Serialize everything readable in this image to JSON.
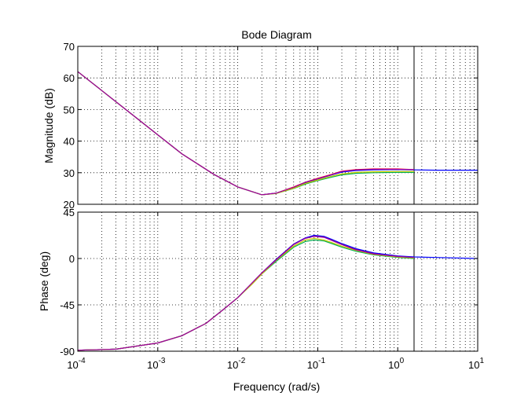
{
  "figure": {
    "title": "Bode Diagram",
    "xlabel": "Frequency  (rad/s)",
    "magnitude_ylabel": "Magnitude (dB)",
    "phase_ylabel": "Phase (deg)"
  },
  "chart_data": [
    {
      "type": "line",
      "panel": "magnitude",
      "title": "Bode Diagram",
      "ylabel": "Magnitude (dB)",
      "xscale": "log",
      "xlim": [
        0.0001,
        10
      ],
      "ylim": [
        20,
        70
      ],
      "yticks": [
        20,
        30,
        40,
        50,
        60,
        70
      ],
      "grid": true,
      "marker_line_x": 1.6,
      "series": [
        {
          "color": "#ff0000",
          "x": [
            0.0001,
            0.0002,
            0.0005,
            0.001,
            0.002,
            0.005,
            0.01,
            0.02,
            0.03,
            0.05,
            0.07,
            0.1,
            0.15,
            0.2,
            0.3,
            0.5,
            1,
            1.6
          ],
          "y": [
            62,
            56,
            48,
            42,
            36,
            29.5,
            25.5,
            23,
            23.5,
            25.5,
            27,
            28.2,
            29.5,
            30.5,
            31,
            31.2,
            31.2,
            31
          ]
        },
        {
          "color": "#0000ff",
          "x": [
            0.0001,
            0.0002,
            0.0005,
            0.001,
            0.002,
            0.005,
            0.01,
            0.02,
            0.03,
            0.05,
            0.07,
            0.1,
            0.15,
            0.2,
            0.3,
            0.5,
            1,
            1.6,
            3,
            10
          ],
          "y": [
            62,
            56,
            48,
            42,
            36,
            29.5,
            25.5,
            23,
            23.5,
            25.3,
            26.8,
            28,
            29.3,
            30.2,
            30.7,
            30.9,
            31,
            30.9,
            30.8,
            30.8
          ]
        },
        {
          "color": "#00b050",
          "x": [
            0.0001,
            0.0002,
            0.0005,
            0.001,
            0.002,
            0.005,
            0.01,
            0.02,
            0.03,
            0.05,
            0.07,
            0.1,
            0.15,
            0.2,
            0.3,
            0.5,
            1,
            1.6
          ],
          "y": [
            62,
            56,
            48,
            42,
            36,
            29.5,
            25.5,
            23,
            23.4,
            25,
            26.4,
            27.5,
            28.6,
            29.3,
            29.8,
            30,
            30.1,
            30.1
          ]
        },
        {
          "color": "#c8c800",
          "x": [
            0.0001,
            0.0002,
            0.0005,
            0.001,
            0.002,
            0.005,
            0.01,
            0.02,
            0.03,
            0.05,
            0.07,
            0.1,
            0.15,
            0.2,
            0.3,
            0.5,
            1,
            1.6
          ],
          "y": [
            62,
            56,
            48,
            42,
            36,
            29.5,
            25.5,
            23,
            23.4,
            25.1,
            26.6,
            27.7,
            28.9,
            29.6,
            30.1,
            30.3,
            30.4,
            30.4
          ]
        },
        {
          "color": "#a000a0",
          "x": [
            0.0001,
            0.0002,
            0.0005,
            0.001,
            0.002,
            0.005,
            0.01,
            0.02,
            0.03,
            0.05,
            0.07,
            0.1,
            0.15,
            0.2,
            0.3,
            0.5,
            1,
            1.6
          ],
          "y": [
            62,
            56,
            48,
            42,
            36,
            29.5,
            25.5,
            23,
            23.5,
            25.4,
            27,
            28.1,
            29.4,
            30.4,
            30.9,
            31.1,
            31.1,
            31
          ]
        }
      ]
    },
    {
      "type": "line",
      "panel": "phase",
      "ylabel": "Phase (deg)",
      "xlabel": "Frequency  (rad/s)",
      "xscale": "log",
      "xlim": [
        0.0001,
        10
      ],
      "ylim": [
        -90,
        45
      ],
      "yticks": [
        -90,
        -45,
        0,
        45
      ],
      "xticks": [
        {
          "base": "10",
          "exp": "-4"
        },
        {
          "base": "10",
          "exp": "-3"
        },
        {
          "base": "10",
          "exp": "-2"
        },
        {
          "base": "10",
          "exp": "-1"
        },
        {
          "base": "10",
          "exp": "0"
        },
        {
          "base": "10",
          "exp": "1"
        }
      ],
      "grid": true,
      "marker_line_x": 1.6,
      "series": [
        {
          "color": "#ff0000",
          "x": [
            0.0001,
            0.0003,
            0.001,
            0.002,
            0.004,
            0.007,
            0.01,
            0.015,
            0.02,
            0.03,
            0.05,
            0.07,
            0.09,
            0.12,
            0.15,
            0.2,
            0.3,
            0.5,
            1,
            1.6
          ],
          "y": [
            -89,
            -88,
            -82,
            -75,
            -63,
            -48,
            -38,
            -24,
            -14,
            -1,
            14,
            20,
            22,
            21,
            18,
            14,
            9,
            5,
            2,
            1
          ]
        },
        {
          "color": "#0000ff",
          "x": [
            0.0001,
            0.0003,
            0.001,
            0.002,
            0.004,
            0.007,
            0.01,
            0.015,
            0.02,
            0.03,
            0.05,
            0.07,
            0.09,
            0.12,
            0.15,
            0.2,
            0.3,
            0.5,
            1,
            1.6,
            3,
            10
          ],
          "y": [
            -89,
            -88,
            -82,
            -75,
            -63,
            -48,
            -38,
            -24,
            -14,
            -1,
            14,
            20,
            22.5,
            21.5,
            18.5,
            14.5,
            9.5,
            5.5,
            2.5,
            1.5,
            1,
            0
          ]
        },
        {
          "color": "#00b050",
          "x": [
            0.0001,
            0.0003,
            0.001,
            0.002,
            0.004,
            0.007,
            0.01,
            0.015,
            0.02,
            0.03,
            0.05,
            0.07,
            0.09,
            0.12,
            0.15,
            0.2,
            0.3,
            0.5,
            1,
            1.6
          ],
          "y": [
            -89,
            -88,
            -82,
            -75,
            -63,
            -48,
            -38,
            -25,
            -15,
            -3,
            11,
            16.5,
            18,
            17,
            14.5,
            11,
            7,
            3.5,
            1,
            0
          ]
        },
        {
          "color": "#c8c800",
          "x": [
            0.0001,
            0.0003,
            0.001,
            0.002,
            0.004,
            0.007,
            0.01,
            0.015,
            0.02,
            0.03,
            0.05,
            0.07,
            0.09,
            0.12,
            0.15,
            0.2,
            0.3,
            0.5,
            1,
            1.6
          ],
          "y": [
            -89,
            -88,
            -82,
            -75,
            -63,
            -48,
            -38,
            -25,
            -15,
            -2,
            12,
            18,
            19.5,
            18,
            15.5,
            12,
            8,
            4,
            1.5,
            0.5
          ]
        },
        {
          "color": "#a000a0",
          "x": [
            0.0001,
            0.0003,
            0.001,
            0.002,
            0.004,
            0.007,
            0.01,
            0.015,
            0.02,
            0.03,
            0.05,
            0.07,
            0.09,
            0.12,
            0.15,
            0.2,
            0.3,
            0.5,
            1,
            1.6
          ],
          "y": [
            -89,
            -88,
            -82,
            -75,
            -63,
            -48,
            -38,
            -24,
            -14,
            -1.5,
            13.5,
            19.5,
            21.5,
            20.5,
            17.5,
            13.5,
            8.5,
            4.5,
            2,
            1
          ]
        }
      ]
    }
  ]
}
